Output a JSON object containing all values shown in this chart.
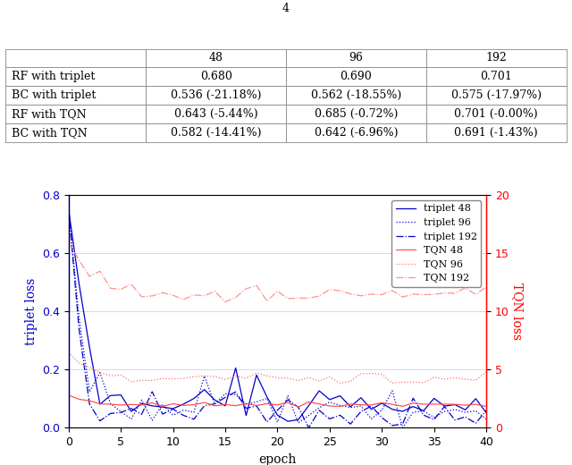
{
  "title": "4",
  "table": {
    "col_headers": [
      "",
      "48",
      "96",
      "192"
    ],
    "rows": [
      [
        "RF with triplet",
        "0.680",
        "0.690",
        "0.701"
      ],
      [
        "BC with triplet",
        "0.536 (-21.18%)",
        "0.562 (-18.55%)",
        "0.575 (-17.97%)"
      ],
      [
        "RF with TQN",
        "0.643 (-5.44%)",
        "0.685 (-0.72%)",
        "0.701 (-0.00%)"
      ],
      [
        "BC with TQN",
        "0.582 (-14.41%)",
        "0.642 (-6.96%)",
        "0.691 (-1.43%)"
      ]
    ]
  },
  "xlabel": "epoch",
  "ylabel_left": "triplet loss",
  "ylabel_right": "TQN loss",
  "xlim": [
    0,
    40
  ],
  "ylim_left": [
    0,
    0.8
  ],
  "ylim_right": [
    0,
    20
  ],
  "yticks_left": [
    0,
    0.2,
    0.4,
    0.6,
    0.8
  ],
  "yticks_right": [
    0,
    5,
    10,
    15,
    20
  ],
  "xticks": [
    0,
    5,
    10,
    15,
    20,
    25,
    30,
    35,
    40
  ],
  "legend_entries": [
    "triplet 48",
    "triplet 96",
    "triplet 192",
    "TQN 48",
    "TQN 96",
    "TQN 192"
  ],
  "blue_color": "#0000cd",
  "red_color": "#FF6060",
  "red_high_color": "#FF8080",
  "grid_color": "#d0d0e8",
  "table_font_size": 9,
  "legend_font_size": 8
}
